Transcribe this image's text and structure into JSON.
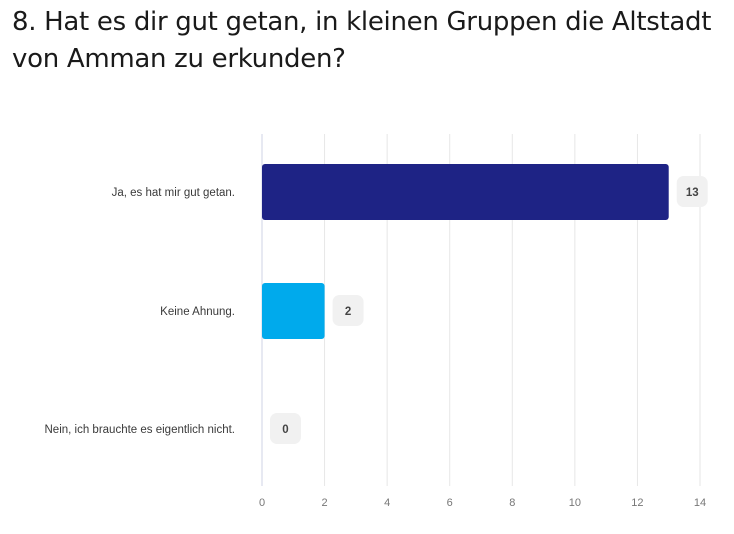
{
  "question": {
    "title": "8. Hat es dir gut getan, in kleinen Gruppen die Altstadt von Amman zu erkunden?"
  },
  "chart_data": {
    "type": "bar",
    "orientation": "horizontal",
    "categories": [
      "Ja, es hat mir gut getan.",
      "Keine Ahnung.",
      "Nein, ich brauchte es eigentlich nicht."
    ],
    "values": [
      13,
      2,
      0
    ],
    "colors": [
      "#1e2385",
      "#00aaec",
      "#7f8dd6"
    ],
    "xlim": [
      0,
      14
    ],
    "xticks": [
      0,
      2,
      4,
      6,
      8,
      10,
      12,
      14
    ],
    "grid": true,
    "value_labels": true,
    "badge_color": "#f1f1f1"
  }
}
